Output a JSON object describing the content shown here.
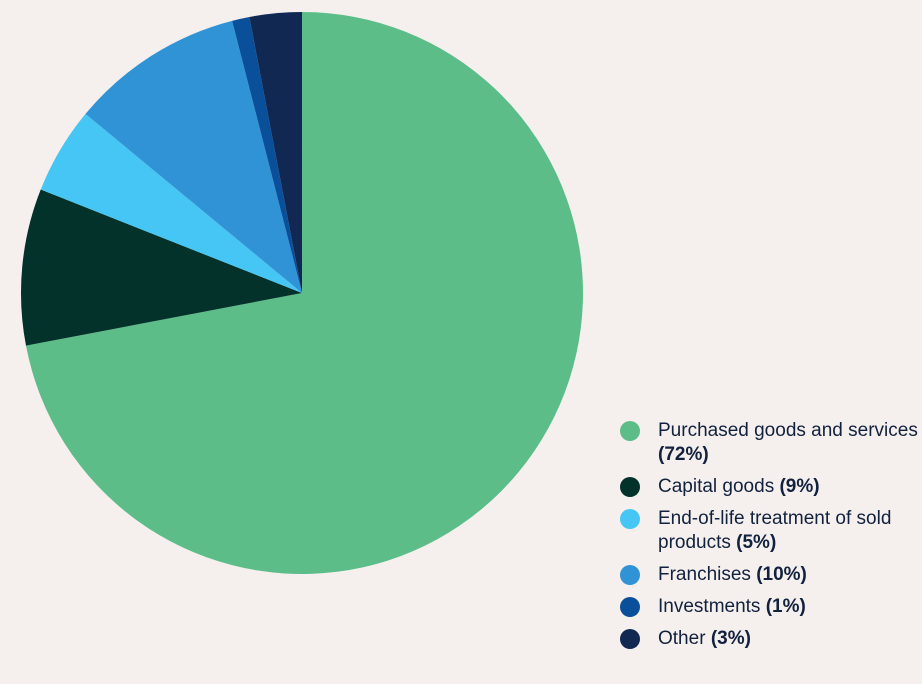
{
  "chart_data": {
    "type": "pie",
    "title": "",
    "start_angle_deg": 0,
    "legend_position": "right-bottom",
    "slices": [
      {
        "label": "Purchased goods and services",
        "value": 72,
        "value_label": "(72%)",
        "color": "#5cbd89"
      },
      {
        "label": "Capital goods",
        "value": 9,
        "value_label": "(9%)",
        "color": "#02322a"
      },
      {
        "label": "End-of-life treatment of sold products",
        "value": 5,
        "value_label": "(5%)",
        "color": "#45c6f5"
      },
      {
        "label": "Franchises",
        "value": 10,
        "value_label": "(10%)",
        "color": "#2f93d6"
      },
      {
        "label": "Investments",
        "value": 1,
        "value_label": "(1%)",
        "color": "#0a4f9a"
      },
      {
        "label": "Other",
        "value": 3,
        "value_label": "(3%)",
        "color": "#112853"
      }
    ]
  }
}
